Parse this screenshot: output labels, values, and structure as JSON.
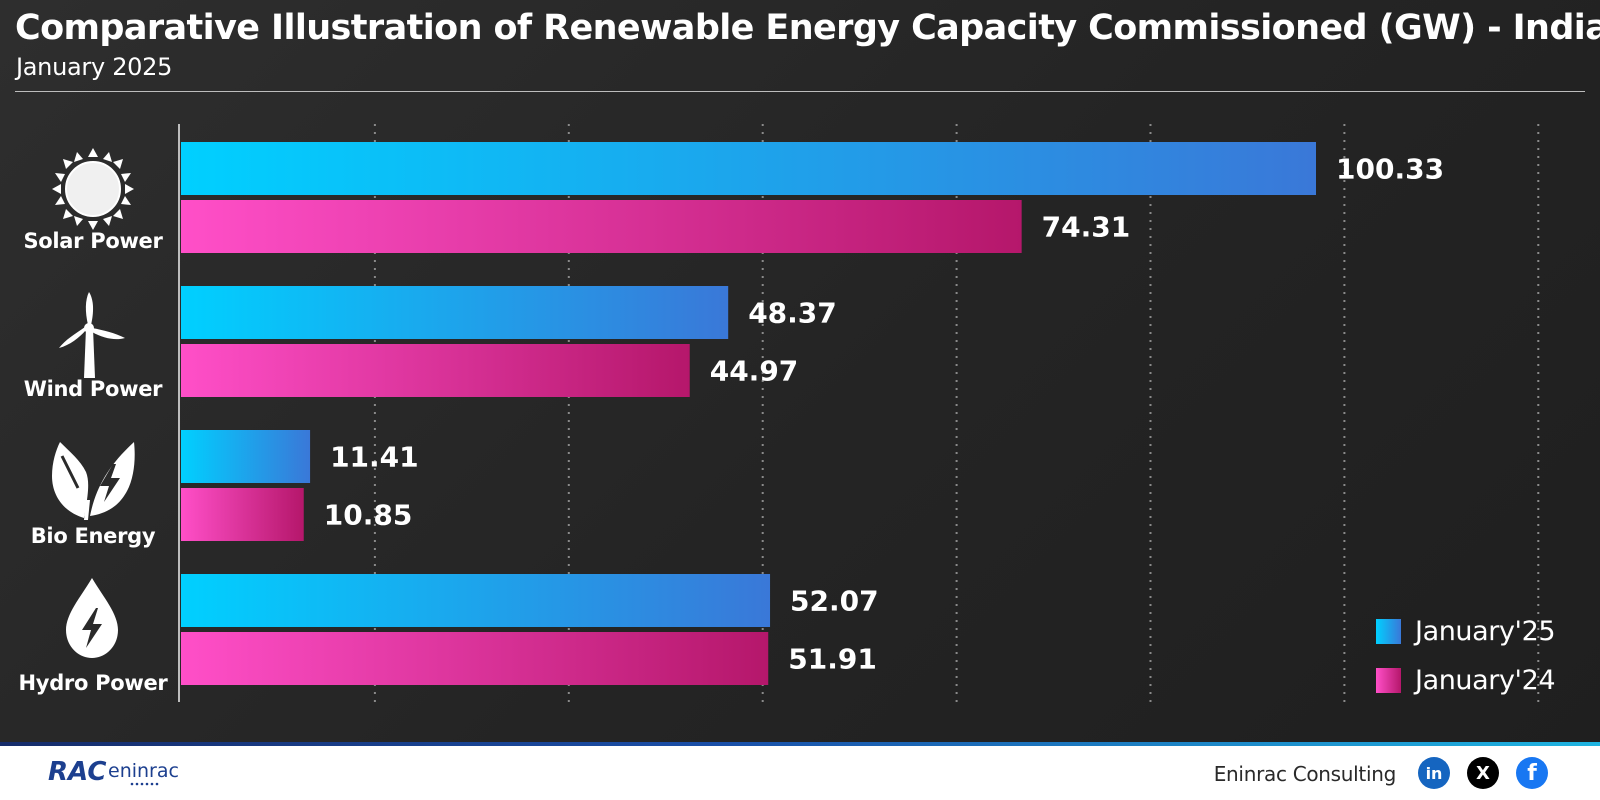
{
  "header": {
    "title": "Comparative Illustration of Renewable Energy Capacity Commissioned (GW) - India",
    "subtitle": "January 2025"
  },
  "chart_data": {
    "type": "bar",
    "orientation": "horizontal",
    "title": "Comparative Illustration of Renewable Energy Capacity Commissioned (GW) - India",
    "subtitle": "January 2025",
    "categories": [
      "Solar Power",
      "Wind Power",
      "Bio Energy",
      "Hydro Power"
    ],
    "category_icons": [
      "sun-icon",
      "wind-turbine-icon",
      "leaf-bolt-icon",
      "water-drop-bolt-icon"
    ],
    "series": [
      {
        "name": "January'25",
        "values": [
          100.33,
          48.37,
          11.41,
          52.07
        ],
        "labels": [
          "100.33",
          "48.37",
          "11.41",
          "52.07"
        ],
        "color_start": "#00d0ff",
        "color_end": "#3a78d8"
      },
      {
        "name": "January'24",
        "values": [
          74.31,
          44.97,
          10.85,
          51.91
        ],
        "labels": [
          "74.31",
          "44.97",
          "10.85",
          "51.91"
        ],
        "color_start": "#ff4fc8",
        "color_end": "#b5176b"
      }
    ],
    "xlim": [
      0,
      120
    ],
    "grid_step": 17.14,
    "grid": true,
    "legend_position": "bottom-right"
  },
  "footer": {
    "logo_text": "RAC eninrac",
    "brand": "Eninrac Consulting",
    "social": [
      {
        "icon": "linkedin-icon",
        "glyph": "in",
        "color": "#1565c0"
      },
      {
        "icon": "x-icon",
        "glyph": "X",
        "color": "#000000"
      },
      {
        "icon": "facebook-icon",
        "glyph": "f",
        "color": "#1877f2"
      }
    ]
  }
}
